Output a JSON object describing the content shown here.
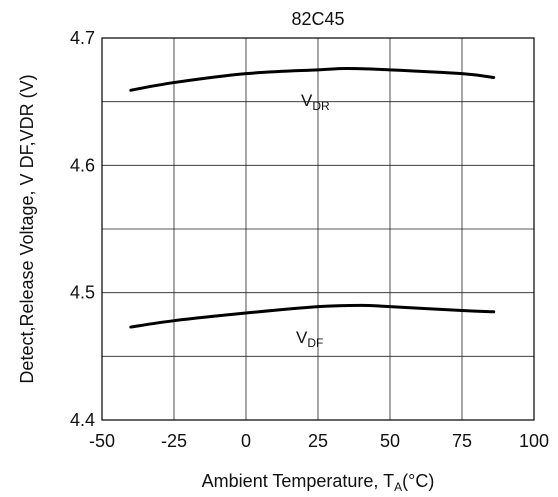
{
  "chart_data": {
    "type": "line",
    "title": "82C45",
    "xlabel": "Ambient Temperature, T",
    "xlabel_sub": "A",
    "xlabel_suffix": "(°C)",
    "ylabel": "Detect,Release Voltage, V DF,VDR (V)",
    "xlim": [
      -50,
      100
    ],
    "ylim": [
      4.4,
      4.7
    ],
    "x_ticks": [
      "-50",
      "-25",
      "0",
      "25",
      "50",
      "75",
      "100"
    ],
    "y_ticks": [
      "4.4",
      "4.5",
      "4.6",
      "4.7"
    ],
    "grid": true,
    "series": [
      {
        "name": "VDR",
        "label_main": "V",
        "label_sub": "DR",
        "x": [
          -40,
          -25,
          0,
          25,
          35,
          50,
          75,
          86
        ],
        "y": [
          4.659,
          4.665,
          4.672,
          4.675,
          4.676,
          4.675,
          4.672,
          4.669
        ]
      },
      {
        "name": "VDF",
        "label_main": "V",
        "label_sub": "DF",
        "x": [
          -40,
          -25,
          0,
          25,
          40,
          50,
          75,
          86
        ],
        "y": [
          4.473,
          4.478,
          4.484,
          4.489,
          4.49,
          4.489,
          4.486,
          4.485
        ]
      }
    ]
  }
}
